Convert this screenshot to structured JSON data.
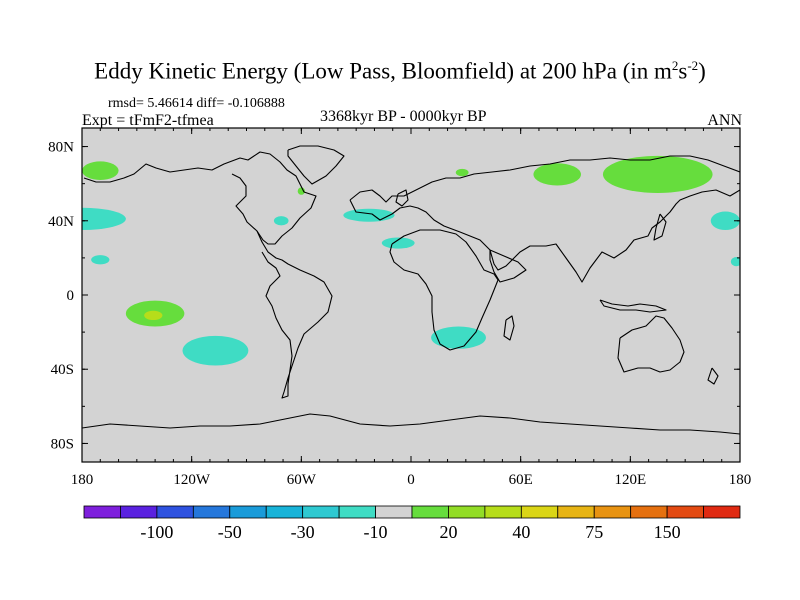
{
  "title": {
    "main": "Eddy Kinetic Energy (Low Pass, Bloomfield) at 200 hPa (in m",
    "exp1": "2",
    "mid": "s",
    "exp2": "-2",
    "close": ")"
  },
  "stats": "rmsd= 5.46614 diff= -0.106888",
  "expt": "Expt = tFmF2-tfmea",
  "period": "3368kyr BP - 0000kyr BP",
  "season": "ANN",
  "map": {
    "lon_range": [
      -180,
      180
    ],
    "lat_range": [
      -90,
      90
    ],
    "land_color": "#d3d3d3",
    "coast_color": "#000000",
    "x_ticks": [
      {
        "lon": -180,
        "label": "180"
      },
      {
        "lon": -120,
        "label": "120W"
      },
      {
        "lon": -60,
        "label": "60W"
      },
      {
        "lon": 0,
        "label": "0"
      },
      {
        "lon": 60,
        "label": "60E"
      },
      {
        "lon": 120,
        "label": "120E"
      },
      {
        "lon": 180,
        "label": "180"
      }
    ],
    "y_ticks": [
      {
        "lat": 80,
        "label": "80N"
      },
      {
        "lat": 40,
        "label": "40N"
      },
      {
        "lat": 0,
        "label": "0"
      },
      {
        "lat": -40,
        "label": "40S"
      },
      {
        "lat": -80,
        "label": "80S"
      }
    ],
    "anomalies": [
      {
        "name": "anomaly-north-pacific",
        "color": "#3fdcc4",
        "lon": -180,
        "lat": 41,
        "dlon": 24,
        "dlat": 6
      },
      {
        "name": "anomaly-west-pacific",
        "color": "#3fdcc4",
        "lon": 172,
        "lat": 40,
        "dlon": 8,
        "dlat": 5
      },
      {
        "name": "anomaly-alaska",
        "color": "#66dd3d",
        "lon": -170,
        "lat": 67,
        "dlon": 10,
        "dlat": 5
      },
      {
        "name": "anomaly-hawaii",
        "color": "#3fdcc4",
        "lon": -170,
        "lat": 19,
        "dlon": 5,
        "dlat": 2.5
      },
      {
        "name": "anomaly-hawaii-east",
        "color": "#3fdcc4",
        "lon": 178,
        "lat": 18,
        "dlon": 3,
        "dlat": 2.5
      },
      {
        "name": "anomaly-south-pacific-center",
        "color": "#66dd3d",
        "lon": -140,
        "lat": -10,
        "dlon": 16,
        "dlat": 7
      },
      {
        "name": "anomaly-south-pacific-core",
        "color": "#b6dd1a",
        "lon": -141,
        "lat": -11,
        "dlon": 5,
        "dlat": 2.5
      },
      {
        "name": "anomaly-south-pacific-east",
        "color": "#3fdcc4",
        "lon": -107,
        "lat": -30,
        "dlon": 18,
        "dlat": 8
      },
      {
        "name": "anomaly-north-atlantic",
        "color": "#3fdcc4",
        "lon": -23,
        "lat": 43,
        "dlon": 14,
        "dlat": 3.5
      },
      {
        "name": "anomaly-atlantic-subtropics",
        "color": "#3fdcc4",
        "lon": -7,
        "lat": 28,
        "dlon": 9,
        "dlat": 3
      },
      {
        "name": "anomaly-newfoundland",
        "color": "#3fdcc4",
        "lon": -71,
        "lat": 40,
        "dlon": 4,
        "dlat": 2.5
      },
      {
        "name": "anomaly-labrador",
        "color": "#66dd3d",
        "lon": -60,
        "lat": 56,
        "dlon": 2,
        "dlat": 2
      },
      {
        "name": "anomaly-scandinavia",
        "color": "#66dd3d",
        "lon": 28,
        "lat": 66,
        "dlon": 3.5,
        "dlat": 2
      },
      {
        "name": "anomaly-southern-africa",
        "color": "#3fdcc4",
        "lon": 26,
        "lat": -23,
        "dlon": 15,
        "dlat": 6
      },
      {
        "name": "anomaly-west-siberia",
        "color": "#66dd3d",
        "lon": 80,
        "lat": 65,
        "dlon": 13,
        "dlat": 6
      },
      {
        "name": "anomaly-east-siberia",
        "color": "#66dd3d",
        "lon": 135,
        "lat": 65,
        "dlon": 30,
        "dlat": 10
      }
    ]
  },
  "colorbar": {
    "colors": [
      "#7e1fdc",
      "#5a21e0",
      "#2e52e0",
      "#2577db",
      "#1a9bd9",
      "#18b3d8",
      "#2ec9d1",
      "#3fdcc4",
      "#d3d3d3",
      "#66dd3d",
      "#92dc26",
      "#b6dd1a",
      "#dad516",
      "#e7b414",
      "#e89312",
      "#e5700f",
      "#e34a12",
      "#e02a12"
    ],
    "labels": [
      {
        "after_index": 1,
        "text": "-100"
      },
      {
        "after_index": 3,
        "text": "-50"
      },
      {
        "after_index": 5,
        "text": "-30"
      },
      {
        "after_index": 7,
        "text": "-10"
      },
      {
        "after_index": 9,
        "text": "20"
      },
      {
        "after_index": 11,
        "text": "40"
      },
      {
        "after_index": 13,
        "text": "75"
      },
      {
        "after_index": 15,
        "text": "150"
      }
    ]
  }
}
